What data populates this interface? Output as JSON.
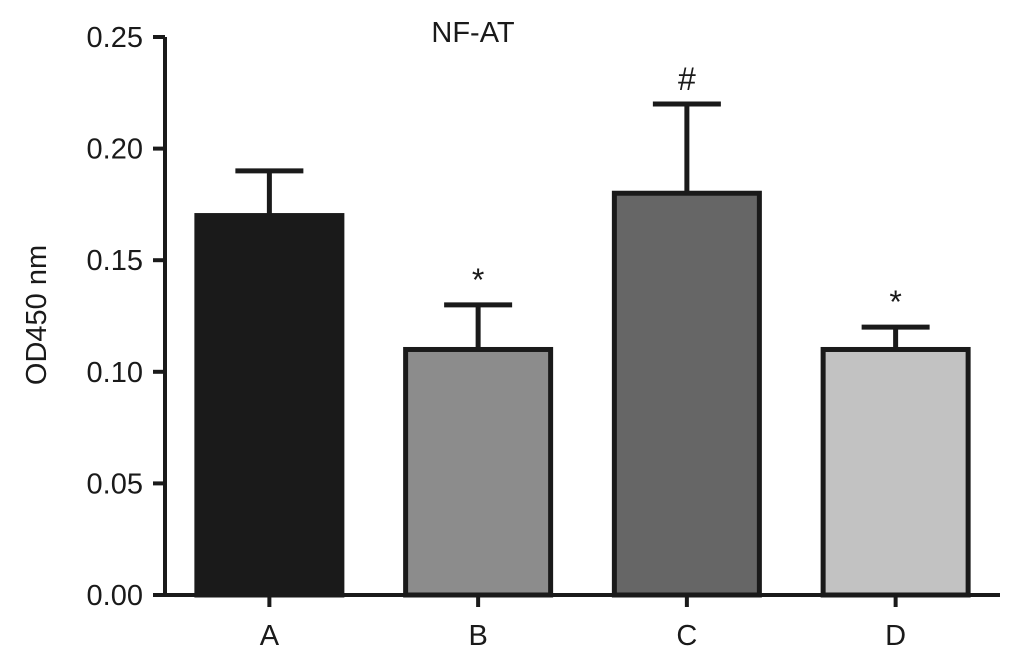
{
  "chart_data": {
    "type": "bar",
    "title": "NF-AT",
    "xlabel": "",
    "ylabel": "OD450 nm",
    "ylim": [
      0,
      0.25
    ],
    "yticks": [
      "0.00",
      "0.05",
      "0.10",
      "0.15",
      "0.20",
      "0.25"
    ],
    "categories": [
      "A",
      "B",
      "C",
      "D"
    ],
    "values": [
      0.17,
      0.11,
      0.18,
      0.11
    ],
    "errors": [
      0.02,
      0.02,
      0.04,
      0.01
    ],
    "annotations": [
      "",
      "*",
      "#",
      "*"
    ],
    "colors": [
      "#1a1a1a",
      "#8c8c8c",
      "#666666",
      "#c2c2c2"
    ],
    "grid": false,
    "legend": "none"
  }
}
